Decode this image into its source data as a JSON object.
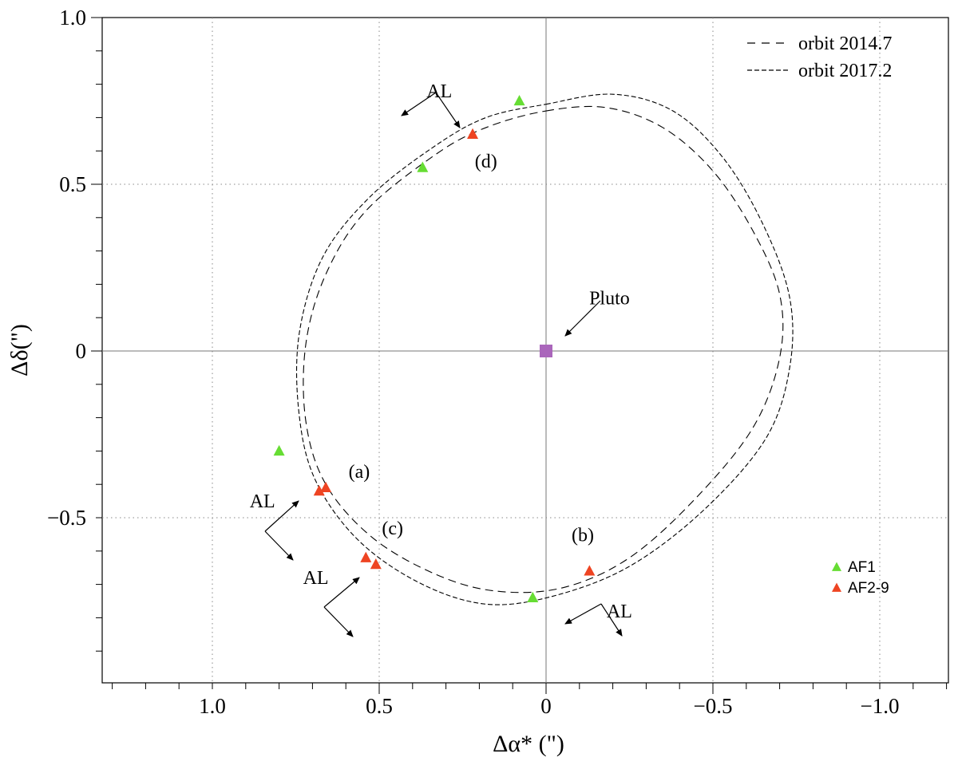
{
  "chart_data": {
    "type": "scatter",
    "title": "",
    "xlabel": "Δα* (\")",
    "ylabel": "Δδ(\")",
    "xlim": [
      1.33,
      -1.23
    ],
    "ylim": [
      -1.0,
      1.0
    ],
    "grid": true,
    "x_ticks": [
      1.0,
      0.5,
      0.0,
      -0.5,
      -1.0
    ],
    "x_tick_labels": [
      "1.0",
      "0.5",
      "0",
      "−0.5",
      "−1.0"
    ],
    "y_ticks": [
      1.0,
      0.5,
      0.0,
      -0.5
    ],
    "y_tick_labels": [
      "1.0",
      "0.5",
      "0",
      "−0.5"
    ],
    "series": [
      {
        "name": "AF1",
        "marker": "triangle",
        "color": "#66dd33",
        "x": [
          0.08,
          0.37,
          0.8,
          0.04
        ],
        "y": [
          0.75,
          0.55,
          -0.3,
          -0.74
        ]
      },
      {
        "name": "AF2-9",
        "marker": "triangle",
        "color": "#ee4422",
        "x": [
          0.22,
          0.66,
          0.68,
          0.54,
          0.51,
          -0.13
        ],
        "y": [
          0.65,
          -0.41,
          -0.42,
          -0.62,
          -0.64,
          -0.66
        ]
      }
    ],
    "orbits": [
      {
        "name": "orbit 2014.7",
        "style": "dashed",
        "points": [
          [
            0.0,
            0.72
          ],
          [
            -0.18,
            0.73
          ],
          [
            -0.35,
            0.67
          ],
          [
            -0.5,
            0.54
          ],
          [
            -0.62,
            0.36
          ],
          [
            -0.7,
            0.17
          ],
          [
            -0.7,
            -0.02
          ],
          [
            -0.62,
            -0.23
          ],
          [
            -0.45,
            -0.44
          ],
          [
            -0.25,
            -0.62
          ],
          [
            -0.05,
            -0.71
          ],
          [
            0.15,
            -0.72
          ],
          [
            0.33,
            -0.67
          ],
          [
            0.52,
            -0.56
          ],
          [
            0.66,
            -0.4
          ],
          [
            0.72,
            -0.21
          ],
          [
            0.72,
            0.02
          ],
          [
            0.66,
            0.23
          ],
          [
            0.54,
            0.42
          ],
          [
            0.33,
            0.59
          ],
          [
            0.18,
            0.67
          ],
          [
            0.0,
            0.72
          ]
        ]
      },
      {
        "name": "orbit 2017.2",
        "style": "dashed-fine",
        "points": [
          [
            0.0,
            0.74
          ],
          [
            -0.2,
            0.77
          ],
          [
            -0.38,
            0.72
          ],
          [
            -0.53,
            0.58
          ],
          [
            -0.65,
            0.38
          ],
          [
            -0.73,
            0.16
          ],
          [
            -0.73,
            -0.05
          ],
          [
            -0.66,
            -0.26
          ],
          [
            -0.48,
            -0.47
          ],
          [
            -0.26,
            -0.64
          ],
          [
            -0.04,
            -0.73
          ],
          [
            0.17,
            -0.76
          ],
          [
            0.37,
            -0.7
          ],
          [
            0.56,
            -0.57
          ],
          [
            0.69,
            -0.39
          ],
          [
            0.74,
            -0.19
          ],
          [
            0.74,
            0.05
          ],
          [
            0.67,
            0.28
          ],
          [
            0.53,
            0.46
          ],
          [
            0.34,
            0.61
          ],
          [
            0.18,
            0.7
          ],
          [
            0.0,
            0.74
          ]
        ]
      }
    ],
    "primary": {
      "name": "Pluto",
      "x": 0.0,
      "y": 0.0,
      "marker": "square",
      "color": "#aa66bb"
    },
    "annotations": [
      {
        "text": "(a)",
        "x": 0.56,
        "y": -0.38
      },
      {
        "text": "(b)",
        "x": -0.11,
        "y": -0.57
      },
      {
        "text": "(c)",
        "x": 0.46,
        "y": -0.55
      },
      {
        "text": "(d)",
        "x": 0.18,
        "y": 0.55
      },
      {
        "text": "Pluto",
        "x": -0.19,
        "y": 0.14
      }
    ],
    "al_markers": [
      {
        "text": "AL",
        "x": 0.32,
        "y": 0.78
      },
      {
        "text": "AL",
        "x": 0.85,
        "y": -0.45
      },
      {
        "text": "AL",
        "x": 0.69,
        "y": -0.68
      },
      {
        "text": "AL",
        "x": -0.22,
        "y": -0.78
      }
    ],
    "legend": {
      "position": "top-right",
      "entries": [
        "orbit 2014.7",
        "orbit 2017.2"
      ]
    },
    "marker_legend": {
      "position": "bottom-right",
      "entries": [
        "AF1",
        "AF2-9"
      ]
    }
  }
}
